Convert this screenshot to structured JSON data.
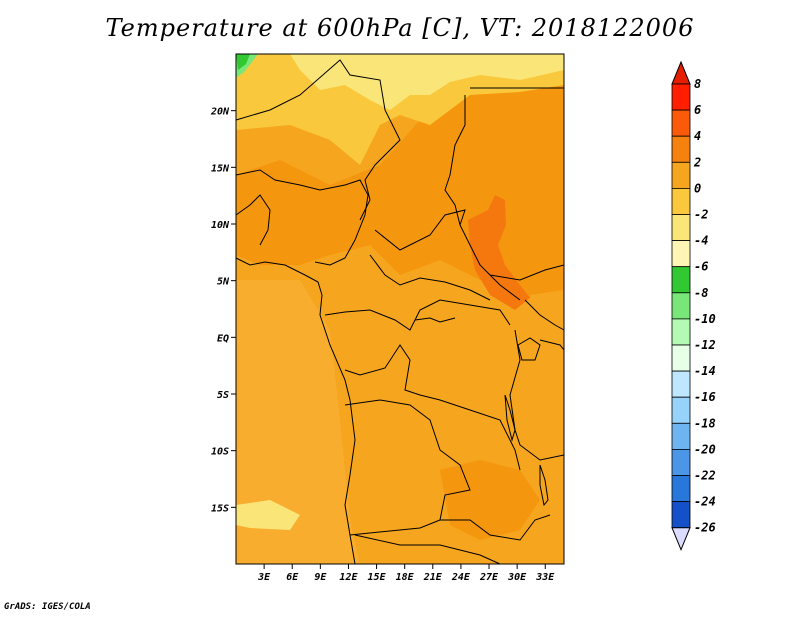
{
  "title": "Temperature at 600hPa [C], VT: 2018122006",
  "credit": "GrADS: IGES/COLA",
  "map": {
    "lat_ticks": [
      "20N",
      "15N",
      "10N",
      "5N",
      "EQ",
      "5S",
      "10S",
      "15S"
    ],
    "lon_ticks": [
      "3E",
      "6E",
      "9E",
      "12E",
      "15E",
      "18E",
      "21E",
      "24E",
      "27E",
      "30E",
      "33E"
    ],
    "lat_range": [
      -20,
      25
    ],
    "lon_range": [
      0,
      35
    ]
  },
  "colorbar": {
    "labels": [
      "8",
      "6",
      "4",
      "2",
      "0",
      "-2",
      "-4",
      "-6",
      "-8",
      "-10",
      "-12",
      "-14",
      "-16",
      "-18",
      "-20",
      "-22",
      "-24",
      "-26"
    ],
    "colors": [
      "#ff1e00",
      "#fa5a0a",
      "#f5820f",
      "#f5a51e",
      "#fac83c",
      "#fae678",
      "#fff5b4",
      "#32c832",
      "#78e678",
      "#b4fab4",
      "#e6ffe6",
      "#bee6ff",
      "#96d2fa",
      "#6eb4f0",
      "#4b96e6",
      "#2878dc",
      "#1450c8",
      "#0a32a0",
      "#0a0a64",
      "#dcdcff"
    ],
    "top_color": "#e61e00",
    "bottom_color": "#dcdcff"
  },
  "chart_data": {
    "type": "heatmap",
    "title": "Temperature at 600hPa [C], VT: 2018122006",
    "xlabel": "",
    "ylabel": "",
    "x_ticks": [
      "3E",
      "6E",
      "9E",
      "12E",
      "15E",
      "18E",
      "21E",
      "24E",
      "27E",
      "30E",
      "33E"
    ],
    "y_ticks": [
      "20N",
      "15N",
      "10N",
      "5N",
      "EQ",
      "5S",
      "10S",
      "15S"
    ],
    "legend_levels": [
      8,
      6,
      4,
      2,
      0,
      -2,
      -4,
      -6,
      -8,
      -10,
      -12,
      -14,
      -16,
      -18,
      -20,
      -22,
      -24,
      -26
    ]
  }
}
